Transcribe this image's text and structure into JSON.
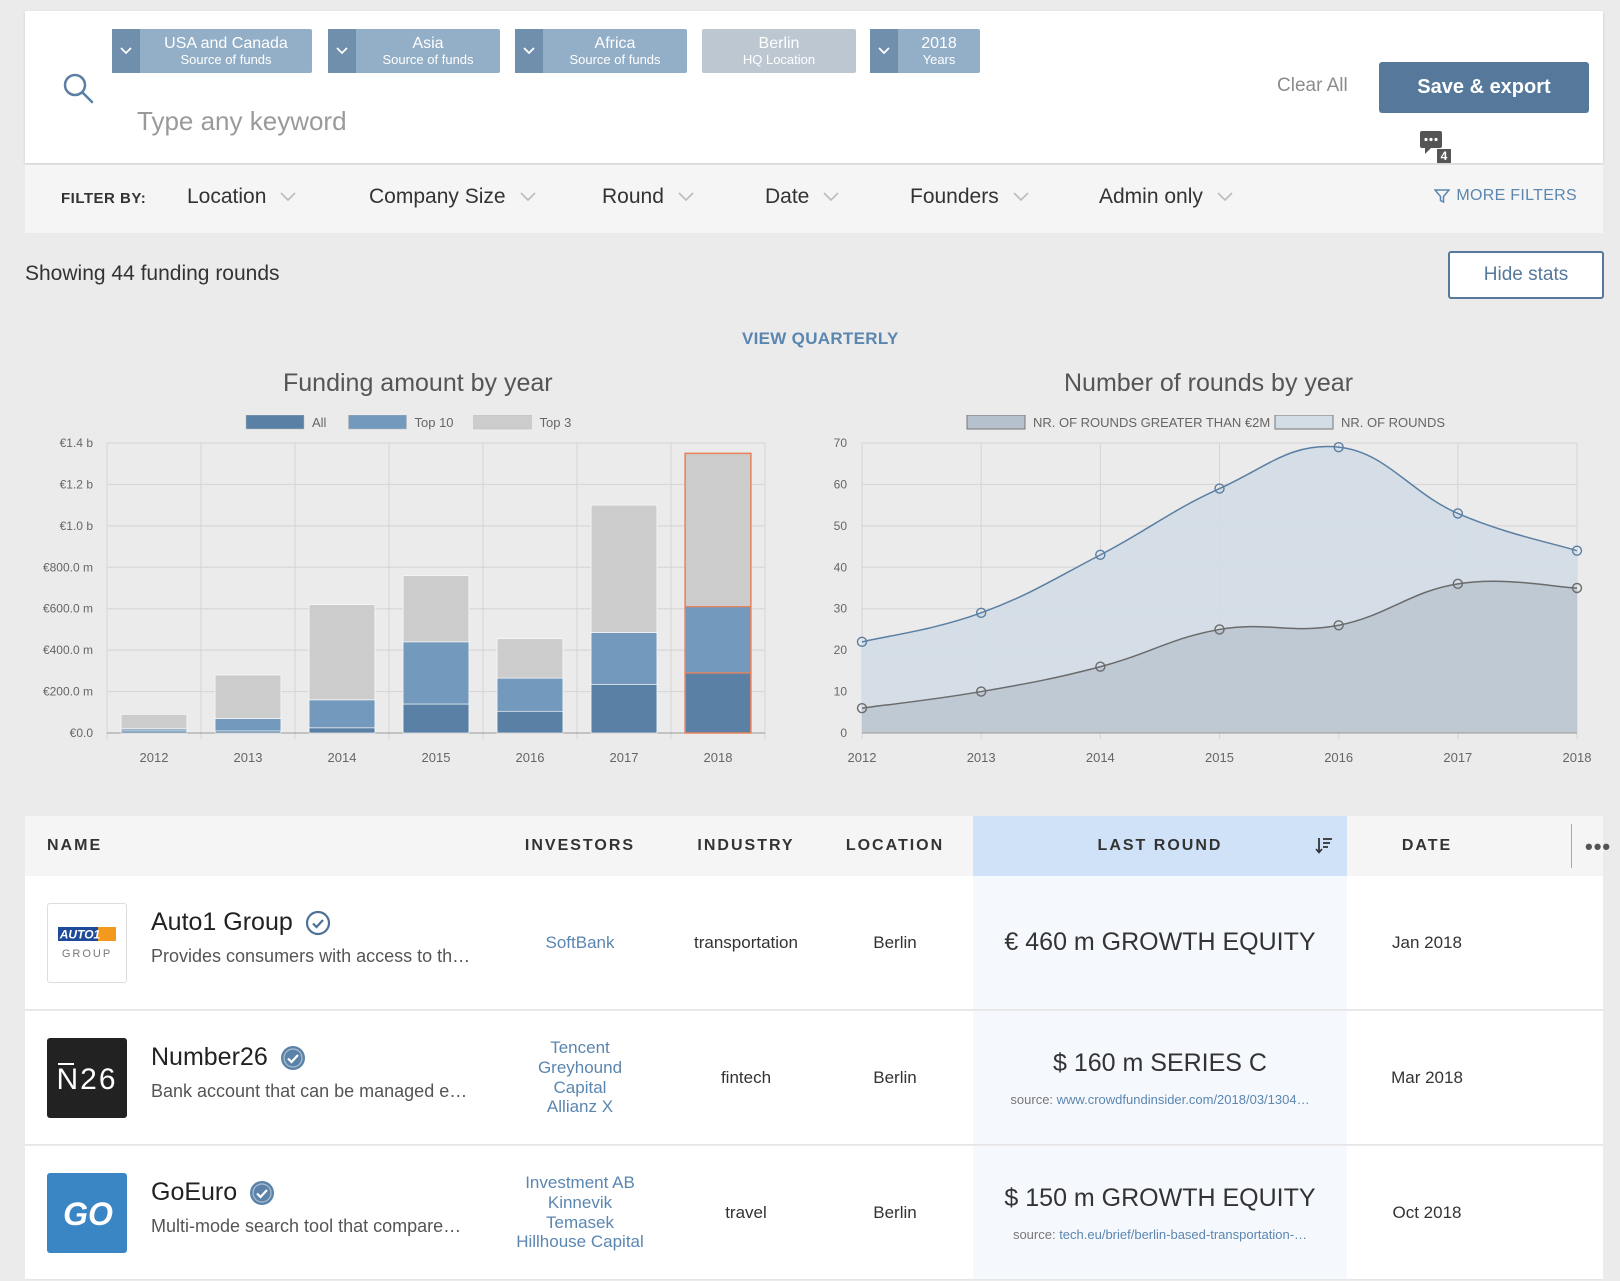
{
  "search": {
    "placeholder": "Type any keyword",
    "chips": [
      {
        "title": "USA and Canada",
        "sub": "Source of funds"
      },
      {
        "title": "Asia",
        "sub": "Source of funds"
      },
      {
        "title": "Africa",
        "sub": "Source of funds"
      },
      {
        "title": "Berlin",
        "sub": "HQ Location"
      },
      {
        "title": "2018",
        "sub": "Years"
      }
    ],
    "clear_all": "Clear All",
    "save_export": "Save & export",
    "chat_count": "4"
  },
  "filters": {
    "label": "FILTER BY:",
    "items": [
      "Location",
      "Company Size",
      "Round",
      "Date",
      "Founders",
      "Admin only"
    ],
    "more": "MORE FILTERS"
  },
  "summary": {
    "showing": "Showing 44 funding rounds",
    "hide_stats": "Hide stats",
    "view_quarterly": "VIEW QUARTERLY"
  },
  "chart_data": [
    {
      "type": "bar",
      "title": "Funding amount by year",
      "categories": [
        "2012",
        "2013",
        "2014",
        "2015",
        "2016",
        "2017",
        "2018"
      ],
      "series": [
        {
          "name": "All",
          "values": [
            10,
            10,
            25,
            140,
            105,
            235,
            290
          ]
        },
        {
          "name": "Top 10",
          "values": [
            10,
            60,
            135,
            300,
            160,
            250,
            320
          ]
        },
        {
          "name": "Top 3",
          "values": [
            70,
            210,
            460,
            320,
            190,
            615,
            740
          ]
        }
      ],
      "ylim": [
        0,
        1400
      ],
      "yticks": [
        "€0.0",
        "€200.0 m",
        "€400.0 m",
        "€600.0 m",
        "€800.0 m",
        "€1.0 b",
        "€1.2 b",
        "€1.4 b"
      ],
      "stacked": true,
      "highlighted": "2018",
      "colors": {
        "All": "#5a81a5",
        "Top 10": "#7399bd",
        "Top 3": "#cccccc",
        "highlight": "#e8825a"
      },
      "legend": "top-center",
      "grid": true
    },
    {
      "type": "area",
      "title": "Number of rounds by year",
      "x": [
        "2012",
        "2013",
        "2014",
        "2015",
        "2016",
        "2017",
        "2018"
      ],
      "series": [
        {
          "name": "NR. OF ROUNDS GREATER THAN €2M",
          "values": [
            6,
            10,
            16,
            25,
            26,
            36,
            35
          ]
        },
        {
          "name": "NR. OF ROUNDS",
          "values": [
            22,
            29,
            43,
            59,
            69,
            53,
            44
          ]
        }
      ],
      "ylim": [
        0,
        70
      ],
      "yticks": [
        "0",
        "10",
        "20",
        "30",
        "40",
        "50",
        "60",
        "70"
      ],
      "colors": {
        "NR. OF ROUNDS GREATER THAN €2M": "#b5c1cc",
        "NR. OF ROUNDS": "#d3dde6"
      },
      "legend": "top-center",
      "grid": true
    }
  ],
  "table": {
    "headers": {
      "name": "NAME",
      "investors": "INVESTORS",
      "industry": "INDUSTRY",
      "location": "LOCATION",
      "last_round": "LAST ROUND",
      "date": "DATE",
      "more": "•••"
    },
    "rows": [
      {
        "name": "Auto1 Group",
        "desc": "Provides consumers with access to th…",
        "logo_top": "AUTO1",
        "logo_bottom": "GROUP",
        "investors": [
          "SoftBank"
        ],
        "industry": "transportation",
        "location": "Berlin",
        "last_round": "€ 460 m GROWTH EQUITY",
        "source_label": "",
        "source_link": "",
        "date": "Jan 2018"
      },
      {
        "name": "Number26",
        "desc": "Bank account that can be managed e…",
        "logo_text": "N26",
        "investors": [
          "Tencent",
          "Greyhound",
          "Capital",
          "Allianz X"
        ],
        "industry": "fintech",
        "location": "Berlin",
        "last_round": "$ 160 m SERIES C",
        "source_label": "source: ",
        "source_link": "www.crowdfundinsider.com/2018/03/1304…",
        "date": "Mar 2018"
      },
      {
        "name": "GoEuro",
        "desc": "Multi-mode search tool that compare…",
        "logo_text": "GO",
        "investors": [
          "Investment AB",
          "Kinnevik",
          "Temasek",
          "Hillhouse Capital"
        ],
        "industry": "travel",
        "location": "Berlin",
        "last_round": "$ 150 m GROWTH EQUITY",
        "source_label": "source: ",
        "source_link": "tech.eu/brief/berlin-based-transportation-…",
        "date": "Oct 2018"
      }
    ]
  }
}
